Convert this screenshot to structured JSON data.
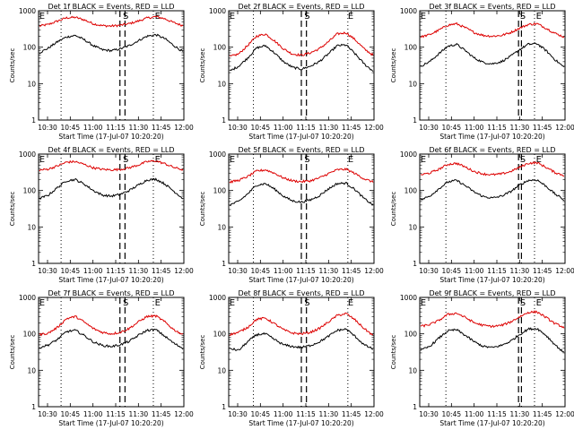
{
  "chart_data": [
    {
      "type": "line",
      "title": "Det 1f BLACK = Events, RED = LLD",
      "xlabel": "Start Time (17-Jul-07 10:20:20)",
      "ylabel": "Counts/sec",
      "x_tick_labels": [
        "10:30",
        "10:45",
        "11:00",
        "11:15",
        "11:30",
        "11:45",
        "12:00"
      ],
      "y_tick_labels": [
        "1",
        "10",
        "100",
        "1000"
      ],
      "yscale": "log",
      "ylim": [
        1,
        1000
      ],
      "markers": [
        "E",
        "S",
        "E"
      ],
      "series": [
        {
          "values": [
            380,
            420,
            520,
            640,
            660,
            560,
            440,
            390,
            380,
            400,
            440,
            520,
            630,
            690,
            600,
            470,
            390
          ]
        },
        {
          "values": [
            70,
            95,
            140,
            190,
            210,
            160,
            110,
            85,
            80,
            90,
            110,
            150,
            200,
            220,
            170,
            110,
            75
          ]
        }
      ]
    },
    {
      "type": "line",
      "title": "Det 2f BLACK = Events, RED = LLD",
      "xlabel": "Start Time (17-Jul-07 10:20:20)",
      "ylabel": "Counts/sec",
      "x_tick_labels": [
        "10:30",
        "10:45",
        "11:00",
        "11:15",
        "11:30",
        "11:45",
        "12:00"
      ],
      "y_tick_labels": [
        "1",
        "10",
        "100",
        "1000"
      ],
      "yscale": "log",
      "ylim": [
        1,
        1000
      ],
      "markers": [
        "E",
        "S",
        "E"
      ],
      "series": [
        {
          "values": [
            55,
            65,
            110,
            200,
            230,
            150,
            90,
            65,
            60,
            70,
            90,
            140,
            230,
            250,
            160,
            90,
            60
          ]
        },
        {
          "values": [
            22,
            30,
            50,
            95,
            110,
            70,
            40,
            28,
            25,
            30,
            40,
            65,
            110,
            115,
            65,
            35,
            22
          ]
        }
      ]
    },
    {
      "type": "line",
      "title": "Det 3f BLACK = Events, RED = LLD",
      "xlabel": "Start Time (17-Jul-07 10:20:20)",
      "ylabel": "Counts/sec",
      "x_tick_labels": [
        "10:30",
        "10:45",
        "11:00",
        "11:15",
        "11:30",
        "11:45",
        "12:00"
      ],
      "y_tick_labels": [
        "1",
        "10",
        "100",
        "1000"
      ],
      "yscale": "log",
      "ylim": [
        1,
        1000
      ],
      "markers": [
        "E",
        "S",
        "E"
      ],
      "series": [
        {
          "values": [
            190,
            220,
            290,
            400,
            440,
            340,
            250,
            210,
            200,
            210,
            250,
            330,
            420,
            440,
            330,
            240,
            190
          ]
        },
        {
          "values": [
            30,
            40,
            65,
            105,
            120,
            80,
            50,
            38,
            35,
            40,
            55,
            85,
            120,
            125,
            80,
            45,
            28
          ]
        }
      ]
    },
    {
      "type": "line",
      "title": "Det 4f BLACK = Events, RED = LLD",
      "xlabel": "Start Time (17-Jul-07 10:20:20)",
      "ylabel": "Counts/sec",
      "x_tick_labels": [
        "10:30",
        "10:45",
        "11:00",
        "11:15",
        "11:30",
        "11:45",
        "12:00"
      ],
      "y_tick_labels": [
        "1",
        "10",
        "100",
        "1000"
      ],
      "yscale": "log",
      "ylim": [
        1,
        1000
      ],
      "markers": [
        "E",
        "S",
        "E"
      ],
      "series": [
        {
          "values": [
            360,
            390,
            470,
            600,
            620,
            520,
            420,
            380,
            370,
            380,
            420,
            500,
            620,
            650,
            540,
            430,
            370
          ]
        },
        {
          "values": [
            60,
            75,
            120,
            185,
            200,
            150,
            100,
            75,
            70,
            78,
            100,
            140,
            195,
            205,
            150,
            95,
            60
          ]
        }
      ]
    },
    {
      "type": "line",
      "title": "Det 5f BLACK = Events, RED = LLD",
      "xlabel": "Start Time (17-Jul-07 10:20:20)",
      "ylabel": "Counts/sec",
      "x_tick_labels": [
        "10:30",
        "10:45",
        "11:00",
        "11:15",
        "11:30",
        "11:45",
        "12:00"
      ],
      "y_tick_labels": [
        "1",
        "10",
        "100",
        "1000"
      ],
      "yscale": "log",
      "ylim": [
        1,
        1000
      ],
      "markers": [
        "E",
        "S",
        "E"
      ],
      "series": [
        {
          "values": [
            170,
            190,
            240,
            340,
            370,
            300,
            220,
            185,
            175,
            185,
            220,
            290,
            370,
            385,
            290,
            210,
            170
          ]
        },
        {
          "values": [
            40,
            50,
            80,
            140,
            155,
            110,
            70,
            52,
            48,
            55,
            72,
            110,
            155,
            160,
            105,
            60,
            40
          ]
        }
      ]
    },
    {
      "type": "line",
      "title": "Det 6f BLACK = Events, RED = LLD",
      "xlabel": "Start Time (17-Jul-07 10:20:20)",
      "ylabel": "Counts/sec",
      "x_tick_labels": [
        "10:30",
        "10:45",
        "11:00",
        "11:15",
        "11:30",
        "11:45",
        "12:00"
      ],
      "y_tick_labels": [
        "1",
        "10",
        "100",
        "1000"
      ],
      "yscale": "log",
      "ylim": [
        1,
        1000
      ],
      "markers": [
        "E",
        "S",
        "E"
      ],
      "series": [
        {
          "values": [
            270,
            300,
            380,
            520,
            560,
            440,
            330,
            285,
            270,
            285,
            330,
            430,
            560,
            580,
            430,
            310,
            260
          ]
        },
        {
          "values": [
            55,
            70,
            110,
            170,
            190,
            135,
            90,
            68,
            62,
            70,
            92,
            140,
            190,
            195,
            130,
            80,
            55
          ]
        }
      ]
    },
    {
      "type": "line",
      "title": "Det 7f BLACK = Events, RED = LLD",
      "xlabel": "Start Time (17-Jul-07 10:20:20)",
      "ylabel": "Counts/sec",
      "x_tick_labels": [
        "10:30",
        "10:45",
        "11:00",
        "11:15",
        "11:30",
        "11:45",
        "12:00"
      ],
      "y_tick_labels": [
        "1",
        "10",
        "100",
        "1000"
      ],
      "yscale": "log",
      "ylim": [
        1,
        1000
      ],
      "markers": [
        "E",
        "S",
        "E"
      ],
      "series": [
        {
          "values": [
            95,
            105,
            150,
            260,
            300,
            210,
            140,
            110,
            100,
            110,
            140,
            210,
            300,
            310,
            210,
            130,
            95
          ]
        },
        {
          "values": [
            42,
            50,
            70,
            115,
            125,
            90,
            60,
            48,
            45,
            50,
            62,
            90,
            125,
            130,
            85,
            55,
            40
          ]
        }
      ]
    },
    {
      "type": "line",
      "title": "Det 8f BLACK = Events, RED = LLD",
      "xlabel": "Start Time (17-Jul-07 10:20:20)",
      "ylabel": "Counts/sec",
      "x_tick_labels": [
        "10:30",
        "10:45",
        "11:00",
        "11:15",
        "11:30",
        "11:45",
        "12:00"
      ],
      "y_tick_labels": [
        "1",
        "10",
        "100",
        "1000"
      ],
      "yscale": "log",
      "ylim": [
        1,
        1000
      ],
      "markers": [
        "E",
        "S",
        "E"
      ],
      "series": [
        {
          "values": [
            95,
            110,
            150,
            250,
            270,
            190,
            130,
            105,
            100,
            110,
            140,
            210,
            320,
            360,
            240,
            140,
            90
          ]
        },
        {
          "values": [
            40,
            35,
            60,
            95,
            100,
            70,
            50,
            45,
            42,
            48,
            60,
            85,
            125,
            135,
            85,
            50,
            38
          ]
        }
      ]
    },
    {
      "type": "line",
      "title": "Det 9f BLACK = Events, RED = LLD",
      "xlabel": "Start Time (17-Jul-07 10:20:20)",
      "ylabel": "Counts/sec",
      "x_tick_labels": [
        "10:30",
        "10:45",
        "11:00",
        "11:15",
        "11:30",
        "11:45",
        "12:00"
      ],
      "y_tick_labels": [
        "1",
        "10",
        "100",
        "1000"
      ],
      "yscale": "log",
      "ylim": [
        1,
        1000
      ],
      "markers": [
        "E",
        "S",
        "E"
      ],
      "series": [
        {
          "values": [
            160,
            180,
            230,
            340,
            370,
            280,
            200,
            170,
            160,
            170,
            210,
            290,
            390,
            400,
            280,
            190,
            150
          ]
        },
        {
          "values": [
            35,
            45,
            75,
            120,
            130,
            90,
            60,
            45,
            42,
            48,
            62,
            95,
            135,
            140,
            90,
            50,
            30
          ]
        }
      ]
    }
  ]
}
